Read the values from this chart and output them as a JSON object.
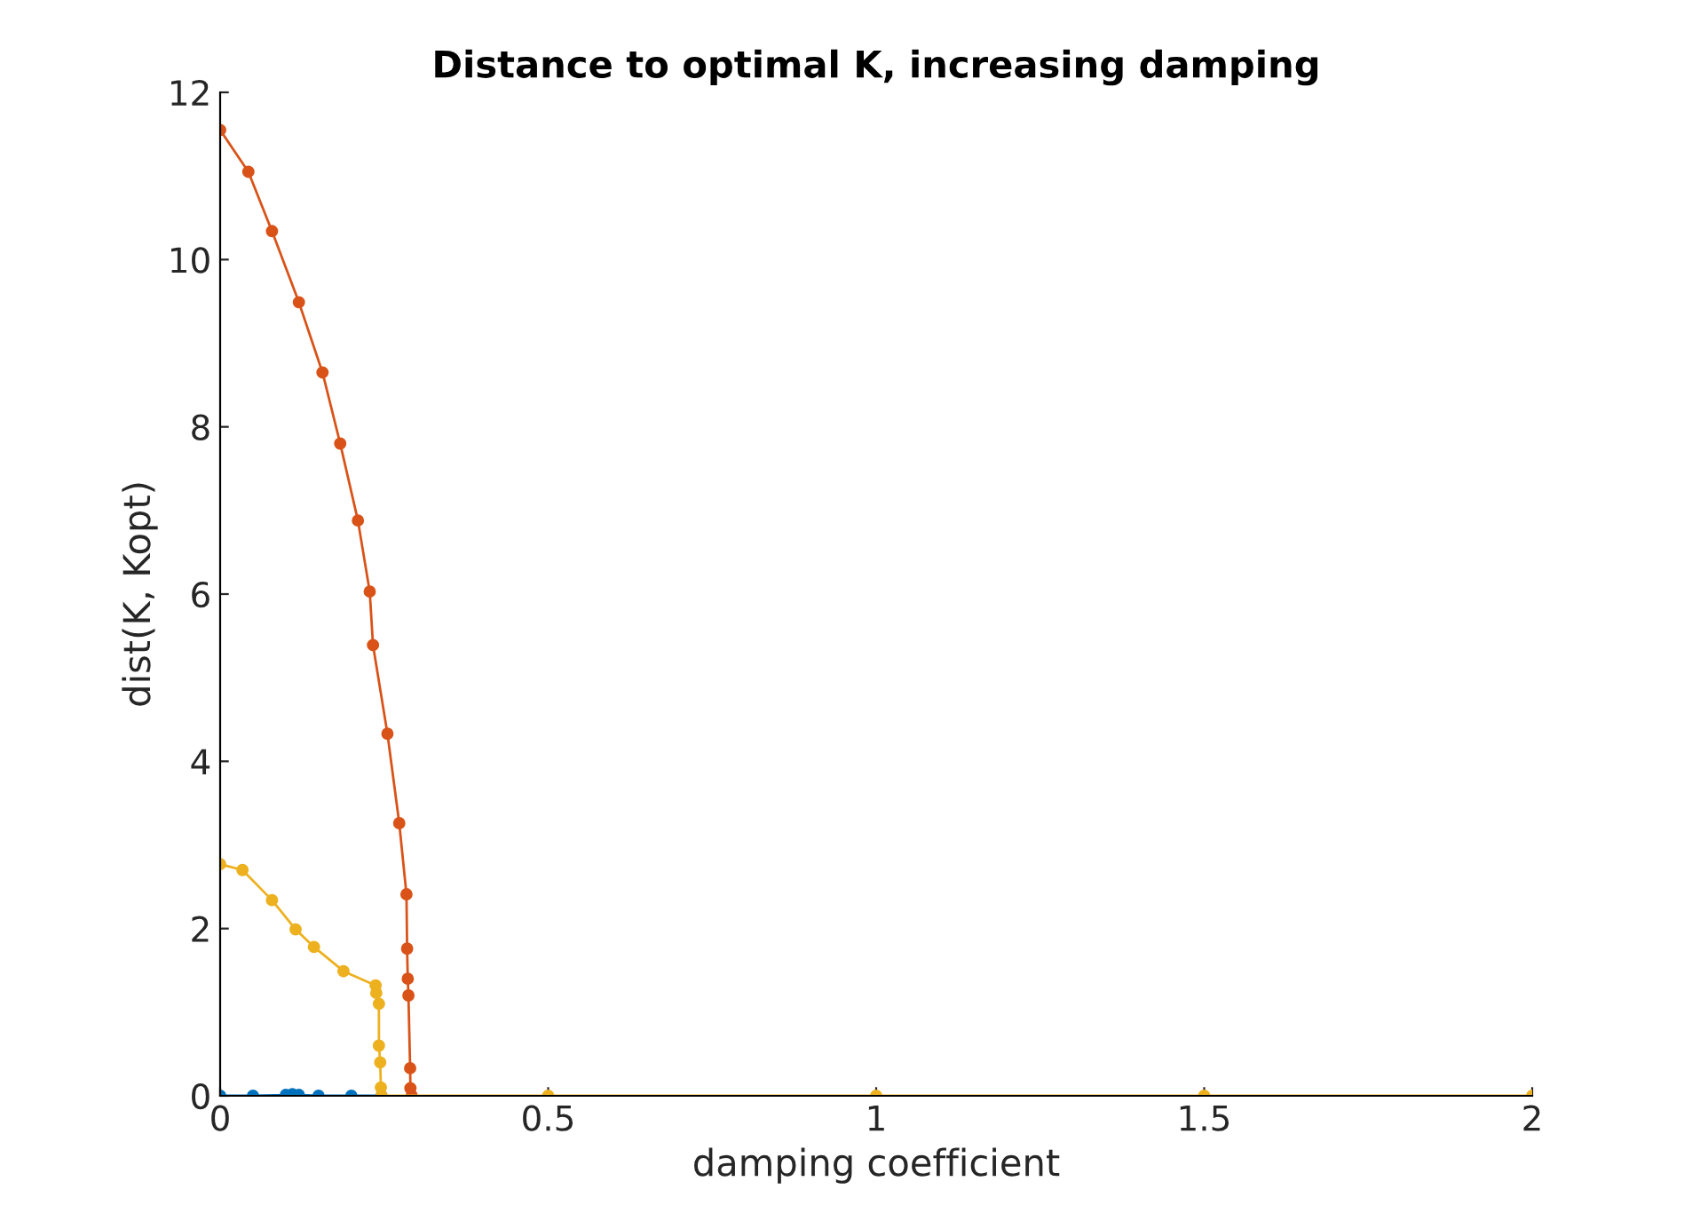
{
  "chart_data": {
    "type": "line",
    "title": "Distance to optimal K, increasing damping",
    "xlabel": "damping coefficient",
    "ylabel": "dist(K, Kopt)",
    "xlim": [
      0,
      2
    ],
    "xticks": [
      0,
      0.5,
      1,
      1.5,
      2
    ],
    "ylim": [
      0,
      12
    ],
    "yticks": [
      0,
      2,
      4,
      6,
      8,
      10,
      12
    ],
    "grid": false,
    "legend": false,
    "marker": "circle",
    "line_style": "solid",
    "series": [
      {
        "color": "#0072bd",
        "x": [
          0,
          0.05,
          0.1,
          0.11,
          0.12,
          0.15,
          0.2,
          0.246
        ],
        "values": [
          0,
          0,
          0.01,
          0.02,
          0.01,
          0,
          0,
          0
        ]
      },
      {
        "color": "#d95319",
        "x": [
          0,
          0.043,
          0.079,
          0.12,
          0.156,
          0.183,
          0.21,
          0.228,
          0.233,
          0.255,
          0.273,
          0.284,
          0.285,
          0.286,
          0.287,
          0.2896,
          0.29,
          0.292
        ],
        "values": [
          11.55,
          11.05,
          10.34,
          9.49,
          8.65,
          7.8,
          6.88,
          6.03,
          5.39,
          4.33,
          3.26,
          2.41,
          1.76,
          1.4,
          1.2,
          0.33,
          0.09,
          0
        ]
      },
      {
        "color": "#edb120",
        "x": [
          0,
          0.034,
          0.079,
          0.115,
          0.143,
          0.188,
          0.237,
          0.238,
          0.242,
          0.242,
          0.244,
          0.245,
          0.246,
          0.5,
          1,
          1.5,
          2
        ],
        "values": [
          2.77,
          2.7,
          2.34,
          1.99,
          1.78,
          1.49,
          1.32,
          1.23,
          1.1,
          0.6,
          0.4,
          0.1,
          0,
          0,
          0,
          0,
          0
        ]
      }
    ]
  }
}
